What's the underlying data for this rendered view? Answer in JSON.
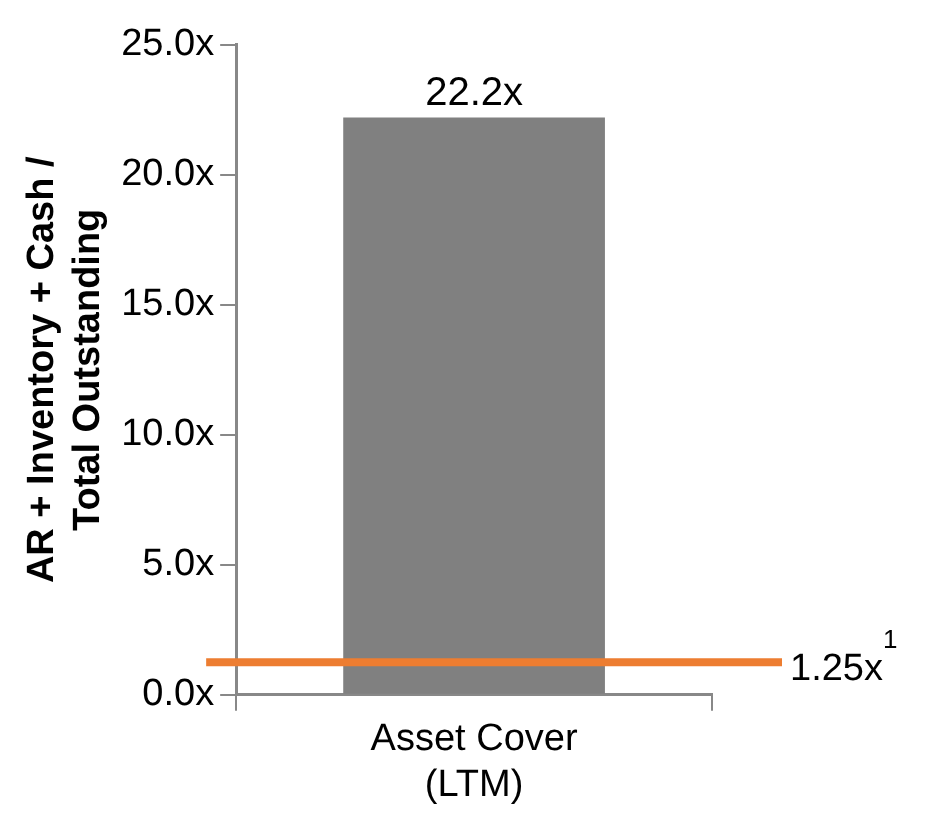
{
  "chart_data": {
    "type": "bar",
    "ylabel": "AR + Inventory + Cash /\nTotal Outstanding",
    "categories": [
      "Asset Cover\n(LTM)"
    ],
    "values": [
      22.2
    ],
    "color": "#808080",
    "value_labels": [
      "22.2x"
    ],
    "ylim": [
      0,
      25
    ],
    "yticks": [
      {
        "value": 0,
        "label": "0.0x"
      },
      {
        "value": 5,
        "label": "5.0x"
      },
      {
        "value": 10,
        "label": "10.0x"
      },
      {
        "value": 15,
        "label": "15.0x"
      },
      {
        "value": 20,
        "label": "20.0x"
      },
      {
        "value": 25,
        "label": "25.0x"
      }
    ],
    "grid": false,
    "legend": false,
    "ref_lines": [
      {
        "axis": "y",
        "value": 1.25,
        "label": "1.25x$^{1}$",
        "color": "#ed7d31"
      }
    ]
  }
}
